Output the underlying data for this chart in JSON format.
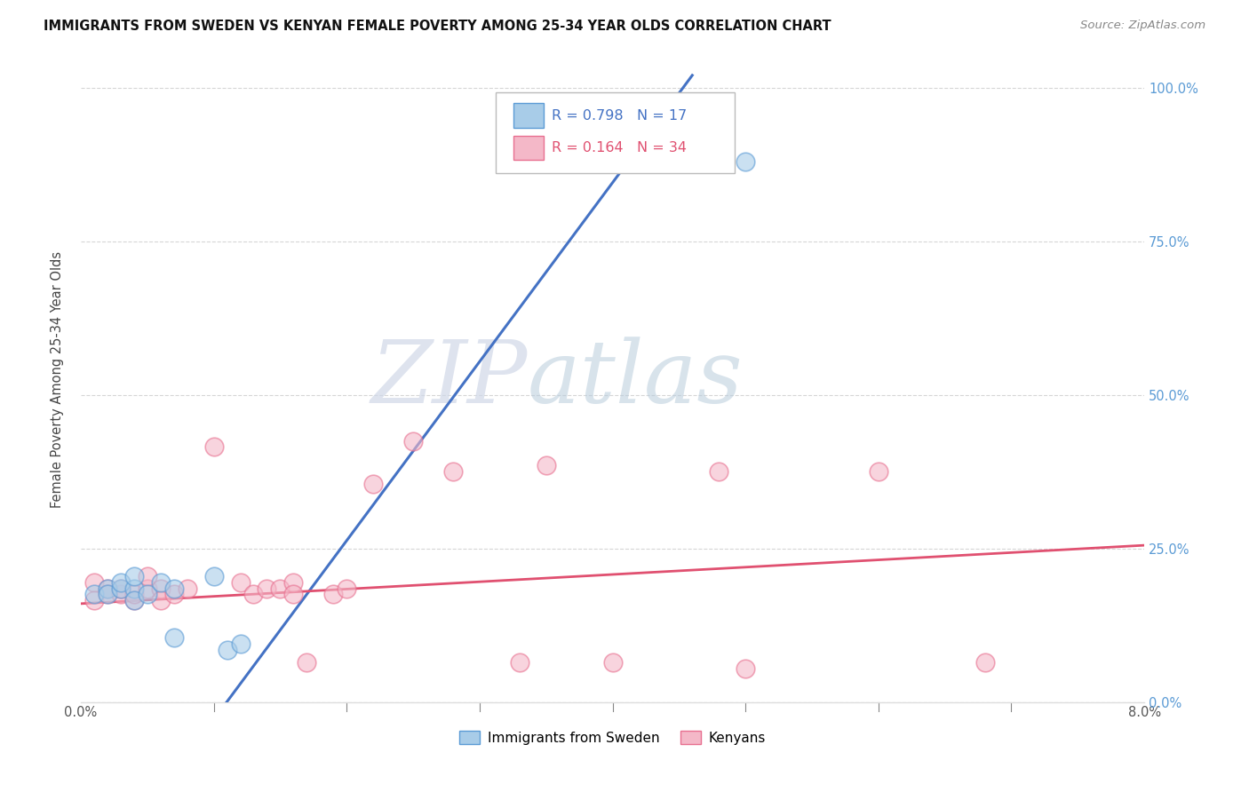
{
  "title": "IMMIGRANTS FROM SWEDEN VS KENYAN FEMALE POVERTY AMONG 25-34 YEAR OLDS CORRELATION CHART",
  "source": "Source: ZipAtlas.com",
  "ylabel": "Female Poverty Among 25-34 Year Olds",
  "right_yticklabels": [
    "0.0%",
    "25.0%",
    "50.0%",
    "75.0%",
    "100.0%"
  ],
  "watermark_zip": "ZIP",
  "watermark_atlas": "atlas",
  "blue_R": "0.798",
  "blue_N": "17",
  "pink_R": "0.164",
  "pink_N": "34",
  "blue_label": "Immigrants from Sweden",
  "pink_label": "Kenyans",
  "blue_color": "#a8cce8",
  "pink_color": "#f4b8c8",
  "blue_edge_color": "#5b9bd5",
  "pink_edge_color": "#e87090",
  "blue_line_color": "#4472c4",
  "pink_line_color": "#e05070",
  "blue_scatter": [
    [
      0.001,
      0.175
    ],
    [
      0.002,
      0.185
    ],
    [
      0.002,
      0.175
    ],
    [
      0.003,
      0.185
    ],
    [
      0.003,
      0.195
    ],
    [
      0.004,
      0.185
    ],
    [
      0.004,
      0.205
    ],
    [
      0.004,
      0.165
    ],
    [
      0.005,
      0.175
    ],
    [
      0.006,
      0.195
    ],
    [
      0.007,
      0.185
    ],
    [
      0.007,
      0.105
    ],
    [
      0.01,
      0.205
    ],
    [
      0.011,
      0.085
    ],
    [
      0.012,
      0.095
    ],
    [
      0.038,
      0.97
    ],
    [
      0.05,
      0.88
    ]
  ],
  "pink_scatter": [
    [
      0.001,
      0.195
    ],
    [
      0.001,
      0.165
    ],
    [
      0.002,
      0.185
    ],
    [
      0.002,
      0.175
    ],
    [
      0.003,
      0.175
    ],
    [
      0.003,
      0.185
    ],
    [
      0.004,
      0.165
    ],
    [
      0.004,
      0.175
    ],
    [
      0.005,
      0.185
    ],
    [
      0.005,
      0.205
    ],
    [
      0.006,
      0.185
    ],
    [
      0.006,
      0.165
    ],
    [
      0.007,
      0.175
    ],
    [
      0.008,
      0.185
    ],
    [
      0.01,
      0.415
    ],
    [
      0.012,
      0.195
    ],
    [
      0.013,
      0.175
    ],
    [
      0.014,
      0.185
    ],
    [
      0.015,
      0.185
    ],
    [
      0.016,
      0.195
    ],
    [
      0.016,
      0.175
    ],
    [
      0.017,
      0.065
    ],
    [
      0.019,
      0.175
    ],
    [
      0.02,
      0.185
    ],
    [
      0.022,
      0.355
    ],
    [
      0.025,
      0.425
    ],
    [
      0.028,
      0.375
    ],
    [
      0.033,
      0.065
    ],
    [
      0.035,
      0.385
    ],
    [
      0.04,
      0.065
    ],
    [
      0.048,
      0.375
    ],
    [
      0.05,
      0.055
    ],
    [
      0.06,
      0.375
    ],
    [
      0.068,
      0.065
    ]
  ],
  "blue_line_pts": [
    [
      0.0,
      -0.32
    ],
    [
      0.046,
      1.02
    ]
  ],
  "pink_line_pts": [
    [
      0.0,
      0.16
    ],
    [
      0.08,
      0.255
    ]
  ],
  "xmin": 0.0,
  "xmax": 0.08,
  "ymin": 0.0,
  "ymax": 1.05
}
